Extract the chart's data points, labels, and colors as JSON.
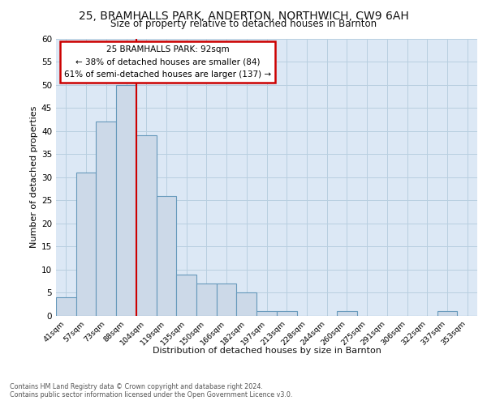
{
  "title1": "25, BRAMHALLS PARK, ANDERTON, NORTHWICH, CW9 6AH",
  "title2": "Size of property relative to detached houses in Barnton",
  "xlabel": "Distribution of detached houses by size in Barnton",
  "ylabel": "Number of detached properties",
  "bar_labels": [
    "41sqm",
    "57sqm",
    "73sqm",
    "88sqm",
    "104sqm",
    "119sqm",
    "135sqm",
    "150sqm",
    "166sqm",
    "182sqm",
    "197sqm",
    "213sqm",
    "228sqm",
    "244sqm",
    "260sqm",
    "275sqm",
    "291sqm",
    "306sqm",
    "322sqm",
    "337sqm",
    "353sqm"
  ],
  "bar_values": [
    4,
    31,
    42,
    50,
    39,
    26,
    9,
    7,
    7,
    5,
    1,
    1,
    0,
    0,
    1,
    0,
    0,
    0,
    0,
    1,
    0
  ],
  "bar_color": "#ccd9e8",
  "bar_edge_color": "#6699bb",
  "ylim": [
    0,
    60
  ],
  "yticks": [
    0,
    5,
    10,
    15,
    20,
    25,
    30,
    35,
    40,
    45,
    50,
    55,
    60
  ],
  "vline_x": 3.5,
  "vline_color": "#cc0000",
  "annotation_text": "25 BRAMHALLS PARK: 92sqm\n← 38% of detached houses are smaller (84)\n61% of semi-detached houses are larger (137) →",
  "annotation_box_color": "#ffffff",
  "annotation_box_edge": "#cc0000",
  "footer1": "Contains HM Land Registry data © Crown copyright and database right 2024.",
  "footer2": "Contains public sector information licensed under the Open Government Licence v3.0.",
  "plot_bg_color": "#dce8f5"
}
